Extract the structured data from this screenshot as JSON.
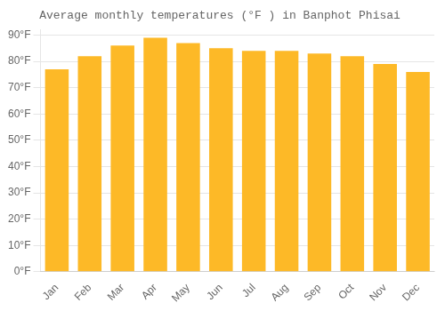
{
  "chart_data": {
    "type": "bar",
    "title": "Average monthly temperatures (°F ) in Banphot Phisai",
    "categories": [
      "Jan",
      "Feb",
      "Mar",
      "Apr",
      "May",
      "Jun",
      "Jul",
      "Aug",
      "Sep",
      "Oct",
      "Nov",
      "Dec"
    ],
    "values": [
      77,
      82,
      86,
      89,
      87,
      85,
      84,
      84,
      83,
      82,
      79,
      76
    ],
    "color": "#FDB927",
    "ylim": [
      0,
      92
    ],
    "yticks": [
      {
        "value": 0,
        "label": "0°F"
      },
      {
        "value": 10,
        "label": "10°F"
      },
      {
        "value": 20,
        "label": "20°F"
      },
      {
        "value": 30,
        "label": "30°F"
      },
      {
        "value": 40,
        "label": "40°F"
      },
      {
        "value": 50,
        "label": "50°F"
      },
      {
        "value": 60,
        "label": "60°F"
      },
      {
        "value": 70,
        "label": "70°F"
      },
      {
        "value": 80,
        "label": "80°F"
      },
      {
        "value": 90,
        "label": "90°F"
      }
    ],
    "grid": true
  }
}
